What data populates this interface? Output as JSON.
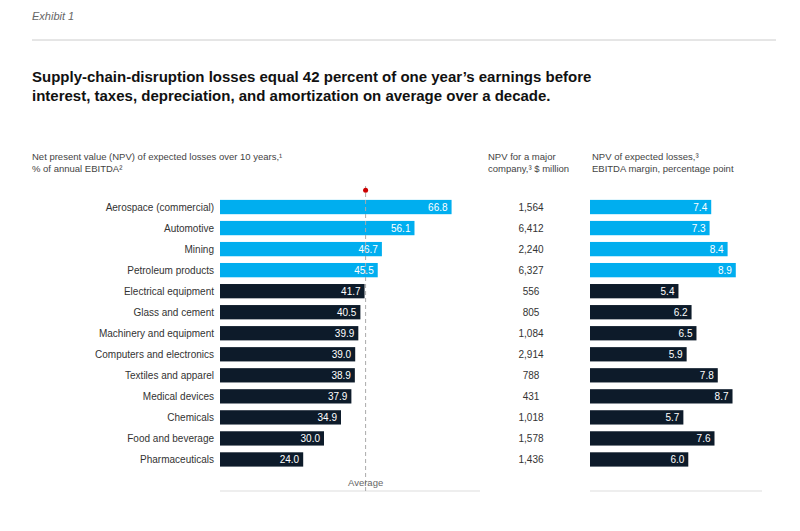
{
  "chart_data": [
    {
      "type": "bar",
      "orientation": "horizontal",
      "title": "Supply-chain-disruption losses equal 42 percent of one year’s earnings before\ninterest, taxes, depreciation, and amortization on average over a decade.",
      "xlabel": "Net present value (NPV) of expected losses over 10 years,¹\n% of annual EBITDA²",
      "categories": [
        "Aerospace (commercial)",
        "Automotive",
        "Mining",
        "Petroleum products",
        "Electrical equipment",
        "Glass and cement",
        "Machinery and equipment",
        "Computers and electronics",
        "Textiles and apparel",
        "Medical devices",
        "Chemicals",
        "Food and beverage",
        "Pharmaceuticals"
      ],
      "values": [
        66.8,
        56.1,
        46.7,
        45.5,
        41.7,
        40.5,
        39.9,
        39.0,
        38.9,
        37.9,
        34.9,
        30.0,
        24.0
      ],
      "value_labels": [
        "66.8",
        "56.1",
        "46.7",
        "45.5",
        "41.7",
        "40.5",
        "39.9",
        "39.0",
        "38.9",
        "37.9",
        "34.9",
        "30.0",
        "24.0"
      ],
      "colors": [
        "#00AEEF",
        "#00AEEF",
        "#00AEEF",
        "#00AEEF",
        "#0D1B2A",
        "#0D1B2A",
        "#0D1B2A",
        "#0D1B2A",
        "#0D1B2A",
        "#0D1B2A",
        "#0D1B2A",
        "#0D1B2A",
        "#0D1B2A"
      ],
      "xlim": [
        0,
        75
      ],
      "data_labels": true,
      "tick_labels": false,
      "annotations": [
        {
          "text": "Exhibit 1"
        },
        {
          "text": "Average",
          "x": 42.0
        }
      ]
    },
    {
      "type": "table",
      "xlabel": "NPV for a major\ncompany,³ $ million",
      "values": [
        1564,
        6412,
        2240,
        6327,
        556,
        805,
        1084,
        2914,
        788,
        431,
        1018,
        1578,
        1436
      ],
      "value_labels": [
        "1,564",
        "6,412",
        "2,240",
        "6,327",
        "556",
        "805",
        "1,084",
        "2,914",
        "788",
        "431",
        "1,018",
        "1,578",
        "1,436"
      ],
      "data_labels": true
    },
    {
      "type": "bar",
      "orientation": "horizontal",
      "xlabel": "NPV of expected losses,³\nEBITDA margin, percentage point",
      "values": [
        7.4,
        7.3,
        8.4,
        8.9,
        5.4,
        6.2,
        6.5,
        5.9,
        7.8,
        8.7,
        5.7,
        7.6,
        6.0
      ],
      "value_labels": [
        "7.4",
        "7.3",
        "8.4",
        "8.9",
        "5.4",
        "6.2",
        "6.5",
        "5.9",
        "7.8",
        "8.7",
        "5.7",
        "7.6",
        "6.0"
      ],
      "colors": [
        "#00AEEF",
        "#00AEEF",
        "#00AEEF",
        "#00AEEF",
        "#0D1B2A",
        "#0D1B2A",
        "#0D1B2A",
        "#0D1B2A",
        "#0D1B2A",
        "#0D1B2A",
        "#0D1B2A",
        "#0D1B2A",
        "#0D1B2A"
      ],
      "xlim": [
        0,
        10.5
      ],
      "data_labels": true,
      "tick_labels": false
    }
  ]
}
